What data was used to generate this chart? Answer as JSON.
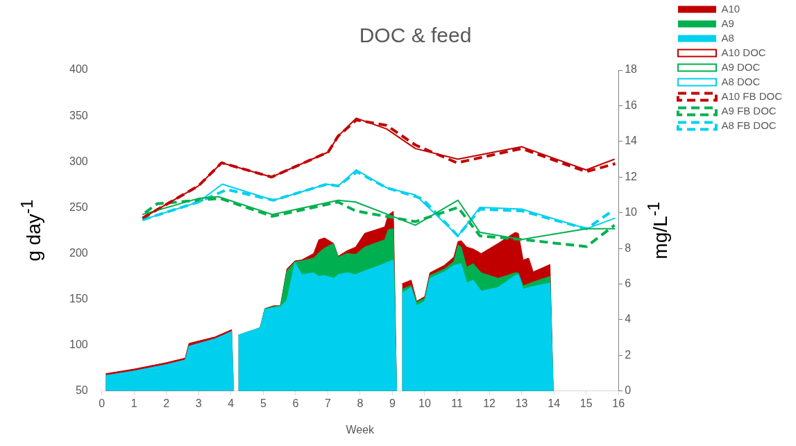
{
  "chart_data": {
    "type": "area",
    "title": "DOC & feed",
    "xlabel": "Week",
    "ylabel": "g day$^{-1}$",
    "y2label": "mg/L$^{-1}$",
    "grid": false,
    "legend": "top right",
    "xlim": [
      0,
      16
    ],
    "xticks": [
      0,
      1,
      2,
      3,
      4,
      5,
      6,
      7,
      8,
      9,
      10,
      11,
      12,
      13,
      14,
      15,
      16
    ],
    "ylim": [
      50,
      400
    ],
    "yticks": [
      50,
      100,
      150,
      200,
      250,
      300,
      350,
      400
    ],
    "y2lim": [
      0,
      18
    ],
    "y2ticks": [
      0,
      2,
      4,
      6,
      8,
      10,
      12,
      14,
      16,
      18
    ],
    "x": [
      0.12,
      1,
      2,
      2.58,
      2.7,
      3.5,
      4.02,
      4.08,
      4.15,
      4.23,
      4.9,
      5.05,
      5.32,
      5.53,
      5.73,
      5.98,
      6.19,
      6.56,
      6.72,
      6.9,
      7.18,
      7.32,
      7.59,
      7.86,
      8.14,
      8.76,
      8.87,
      9.03,
      9.13,
      9.2,
      9.3,
      9.58,
      9.75,
      10.0,
      10.16,
      10.6,
      10.9,
      11.03,
      11.13,
      11.3,
      11.5,
      11.75,
      12.27,
      12.8,
      12.9,
      13.05,
      13.22,
      13.36,
      13.88,
      13.98
    ],
    "series": [
      {
        "name": "A10",
        "color": "#c00000",
        "values": [
          69,
          74,
          81,
          86,
          102,
          109,
          117,
          50,
          null,
          111,
          119,
          140,
          143,
          143,
          183,
          192,
          193,
          200,
          215,
          217,
          211,
          197,
          203,
          207,
          222,
          229,
          242,
          246,
          50,
          null,
          167,
          171,
          148,
          153,
          179,
          187,
          196,
          213,
          214,
          207,
          205,
          200,
          211,
          223,
          222,
          193,
          195,
          180,
          188,
          50
        ]
      },
      {
        "name": "A9",
        "color": "#00b050",
        "values": [
          null,
          null,
          null,
          null,
          null,
          null,
          null,
          null,
          null,
          111,
          119,
          140,
          142,
          143,
          181,
          191,
          192,
          195,
          201,
          206,
          211,
          196,
          200,
          199,
          207,
          215,
          226,
          227,
          50,
          null,
          161,
          165,
          147,
          151,
          176,
          183,
          191,
          209,
          207,
          185,
          189,
          179,
          173,
          179,
          179,
          165,
          167,
          169,
          175,
          50
        ]
      },
      {
        "name": "A8",
        "color": "#00d0ee",
        "values": [
          67,
          72,
          79,
          84,
          99,
          107,
          115,
          50,
          null,
          111,
          119,
          139,
          141,
          142,
          149,
          190,
          177,
          179,
          175,
          176,
          173,
          177,
          179,
          177,
          181,
          189,
          191,
          193,
          50,
          null,
          157,
          163,
          143,
          148,
          173,
          180,
          187,
          188,
          189,
          168,
          171,
          159,
          163,
          176,
          177,
          161,
          163,
          164,
          168,
          50
        ]
      },
      {
        "name": "A10 DOC",
        "type": "line",
        "axis": "y2",
        "color": "#c00000",
        "line_style": "solid",
        "x": [
          1.26,
          2.99,
          3.71,
          5.26,
          7.01,
          7.32,
          7.88,
          8.82,
          9.71,
          11.03,
          13.0,
          15.0,
          15.88
        ],
        "values": [
          9.7,
          11.5,
          12.8,
          12.0,
          13.4,
          14.3,
          15.3,
          14.7,
          13.6,
          13.0,
          13.7,
          12.4,
          13.0
        ]
      },
      {
        "name": "A9 DOC",
        "type": "line",
        "axis": "y2",
        "color": "#00b050",
        "line_style": "solid",
        "x": [
          1.26,
          2.99,
          3.61,
          5.28,
          7.32,
          7.86,
          9.71,
          11.03,
          11.71,
          13.01,
          15.01,
          15.9
        ],
        "values": [
          9.9,
          10.8,
          10.9,
          9.9,
          10.7,
          10.6,
          9.3,
          10.7,
          8.9,
          8.5,
          9.1,
          9.1
        ]
      },
      {
        "name": "A8 DOC",
        "type": "line",
        "axis": "y2",
        "color": "#00d0ee",
        "line_style": "solid",
        "x": [
          1.26,
          2.99,
          3.73,
          5.32,
          6.97,
          7.32,
          7.88,
          8.82,
          9.71,
          11.03,
          11.71,
          13.01,
          15.01,
          15.9
        ],
        "values": [
          9.6,
          10.6,
          11.6,
          10.7,
          11.6,
          11.5,
          12.4,
          11.4,
          11.0,
          8.7,
          10.3,
          10.2,
          9.1,
          9.7
        ]
      },
      {
        "name": "A10 FB DOC",
        "type": "line",
        "axis": "y2",
        "color": "#c00000",
        "line_style": "dashed",
        "x": [
          1.26,
          2.99,
          3.71,
          5.26,
          7.01,
          7.32,
          7.88,
          8.82,
          9.71,
          11.0,
          13.0,
          15.0,
          15.9
        ],
        "values": [
          9.7,
          11.5,
          12.8,
          12.0,
          13.4,
          14.3,
          15.2,
          14.9,
          13.8,
          12.8,
          13.6,
          12.3,
          12.75
        ]
      },
      {
        "name": "A9 FB DOC",
        "type": "line",
        "axis": "y2",
        "color": "#00b050",
        "line_style": "dashed",
        "x": [
          1.34,
          1.71,
          2.99,
          3.67,
          5.28,
          7.32,
          7.86,
          9.71,
          11.03,
          11.71,
          13.01,
          15.01,
          15.88
        ],
        "values": [
          10.0,
          10.5,
          10.7,
          10.8,
          9.8,
          10.6,
          10.1,
          9.5,
          10.3,
          8.7,
          8.5,
          8.1,
          9.3
        ]
      },
      {
        "name": "A8 FB DOC",
        "type": "line",
        "axis": "y2",
        "color": "#00d0ee",
        "line_style": "dashed",
        "x": [
          1.26,
          2.99,
          3.88,
          5.32,
          6.97,
          7.32,
          7.9,
          8.82,
          9.92,
          11.03,
          11.71,
          13.01,
          15.01,
          15.73
        ],
        "values": [
          9.6,
          10.6,
          11.3,
          10.7,
          11.6,
          11.5,
          12.3,
          11.4,
          10.8,
          8.7,
          10.2,
          10.1,
          9.1,
          10.0
        ]
      }
    ]
  }
}
